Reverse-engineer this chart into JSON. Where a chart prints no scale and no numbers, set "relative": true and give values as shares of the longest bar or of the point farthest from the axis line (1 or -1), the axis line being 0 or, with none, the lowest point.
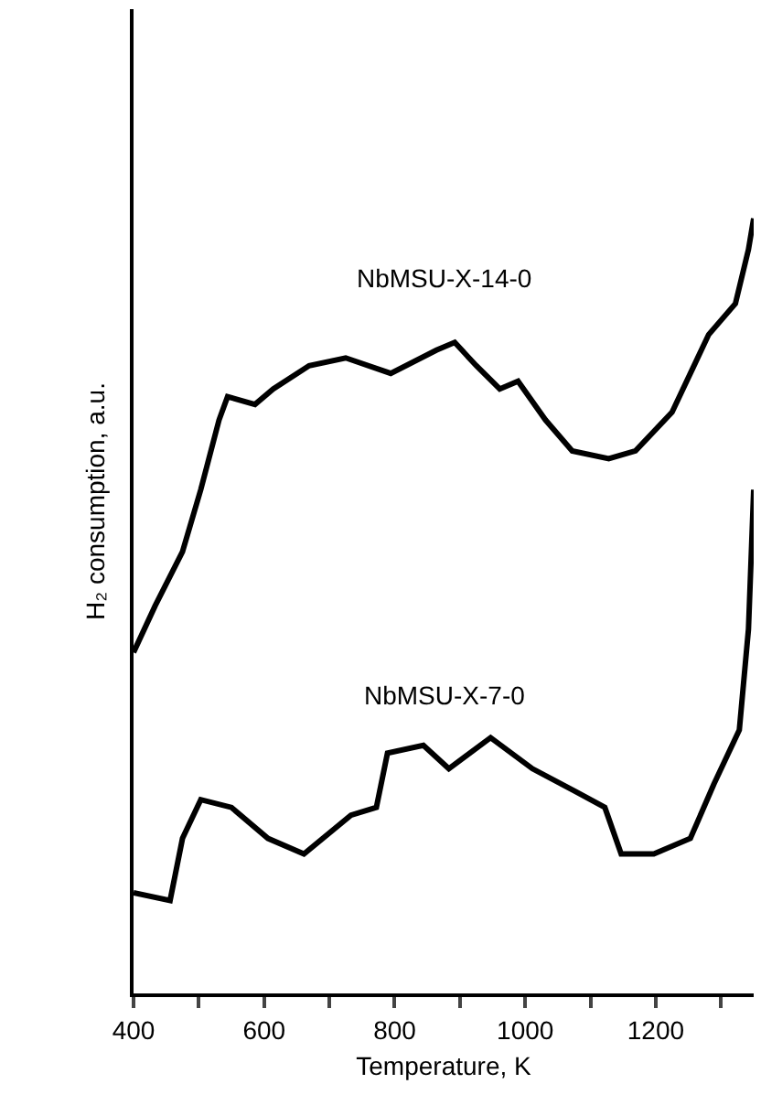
{
  "chart_data": {
    "type": "line",
    "relative": true,
    "xlabel": "Temperature, K",
    "ylabel": "H₂ consumption, a.u.",
    "xlim": [
      400,
      1350
    ],
    "xticks": [
      400,
      {
        "value": 500,
        "label": null
      },
      600,
      {
        "value": 700,
        "label": null
      },
      800,
      {
        "value": 900,
        "label": null
      },
      1000,
      {
        "value": 1100,
        "label": null
      },
      1200,
      {
        "value": 1300,
        "label": null
      }
    ],
    "tick_labels": "x",
    "grid": false,
    "legend": false,
    "marker": "none",
    "line_style": "solid",
    "series": [
      {
        "name": "NbMSU-X-14-0",
        "color": "#000000",
        "x": [
          400,
          433,
          475,
          503,
          531,
          544,
          586,
          614,
          669,
          725,
          794,
          864,
          892,
          925,
          961,
          989,
          1031,
          1072,
          1128,
          1169,
          1225,
          1281,
          1322,
          1342,
          1350
        ],
        "values": [
          0.44,
          0.5,
          0.57,
          0.65,
          0.74,
          0.77,
          0.76,
          0.78,
          0.81,
          0.82,
          0.8,
          0.83,
          0.84,
          0.81,
          0.78,
          0.79,
          0.74,
          0.7,
          0.69,
          0.7,
          0.75,
          0.85,
          0.89,
          0.96,
          1.0
        ]
      },
      {
        "name": "NbMSU-X-7-0",
        "color": "#000000",
        "x": [
          400,
          456,
          475,
          503,
          550,
          606,
          661,
          733,
          772,
          789,
          844,
          883,
          947,
          1011,
          1078,
          1122,
          1147,
          1197,
          1253,
          1289,
          1328,
          1342,
          1350
        ],
        "values": [
          0.13,
          0.12,
          0.2,
          0.25,
          0.24,
          0.2,
          0.18,
          0.23,
          0.24,
          0.31,
          0.32,
          0.29,
          0.33,
          0.29,
          0.26,
          0.24,
          0.18,
          0.18,
          0.2,
          0.27,
          0.34,
          0.47,
          0.65
        ]
      }
    ]
  }
}
